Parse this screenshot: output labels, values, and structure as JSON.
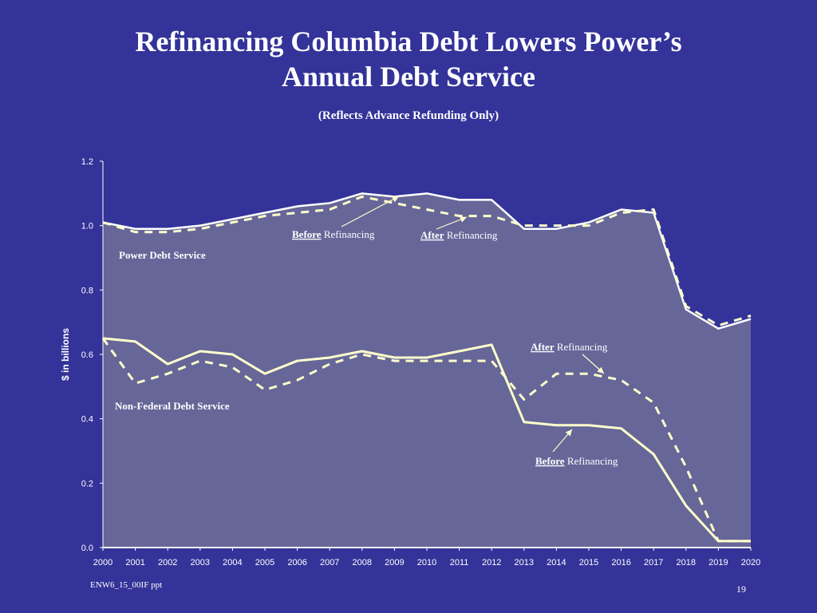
{
  "slide": {
    "title_line1": "Refinancing Columbia Debt Lowers Power’s",
    "title_line2": "Annual Debt Service",
    "subtitle": "(Reflects Advance Refunding Only)",
    "footer_left": "ENW6_15_00IF ppt",
    "page_number": "19"
  },
  "chart_data": {
    "type": "line",
    "title": "",
    "xlabel": "",
    "ylabel": "$ in billions",
    "ylim": [
      0,
      1.2
    ],
    "y_ticks": [
      "0.0",
      "0.2",
      "0.4",
      "0.6",
      "0.8",
      "1.0",
      "1.2"
    ],
    "x": [
      "2000",
      "2001",
      "2002",
      "2003",
      "2004",
      "2005",
      "2006",
      "2007",
      "2008",
      "2009",
      "2010",
      "2011",
      "2012",
      "2013",
      "2014",
      "2015",
      "2016",
      "2017",
      "2018",
      "2019",
      "2020"
    ],
    "colors": {
      "background": "#333399",
      "plot_area": "#666699",
      "before_line": "#ffffcc",
      "after_line": "#ffffcc",
      "power_before_line": "#ffffff"
    },
    "series": [
      {
        "key": "power_before",
        "style": "solid",
        "area": true,
        "values": [
          1.01,
          0.99,
          0.99,
          1.0,
          1.02,
          1.04,
          1.06,
          1.07,
          1.1,
          1.09,
          1.1,
          1.08,
          1.08,
          0.99,
          0.99,
          1.01,
          1.05,
          1.04,
          0.74,
          0.68,
          0.71
        ]
      },
      {
        "key": "power_after",
        "style": "dashed",
        "values": [
          1.01,
          0.98,
          0.98,
          0.99,
          1.01,
          1.03,
          1.04,
          1.05,
          1.09,
          1.07,
          1.05,
          1.03,
          1.03,
          1.0,
          1.0,
          1.0,
          1.04,
          1.05,
          0.75,
          0.69,
          0.72
        ]
      },
      {
        "key": "nonfed_before",
        "style": "solid",
        "values": [
          0.65,
          0.64,
          0.57,
          0.61,
          0.6,
          0.54,
          0.58,
          0.59,
          0.61,
          0.59,
          0.59,
          0.61,
          0.63,
          0.39,
          0.38,
          0.38,
          0.37,
          0.29,
          0.13,
          0.02,
          0.02
        ]
      },
      {
        "key": "nonfed_after",
        "style": "dashed",
        "values": [
          0.65,
          0.51,
          0.54,
          0.58,
          0.56,
          0.49,
          0.52,
          0.57,
          0.6,
          0.58,
          0.58,
          0.58,
          0.58,
          0.46,
          0.54,
          0.54,
          0.52,
          0.45,
          0.25,
          0.02,
          0.02
        ]
      }
    ],
    "annotations": {
      "power_label": "Power Debt Service",
      "nonfed_label": "Non-Federal Debt Service",
      "before_word": "Before",
      "after_word": "After",
      "refinancing_word": "Refinancing"
    }
  }
}
